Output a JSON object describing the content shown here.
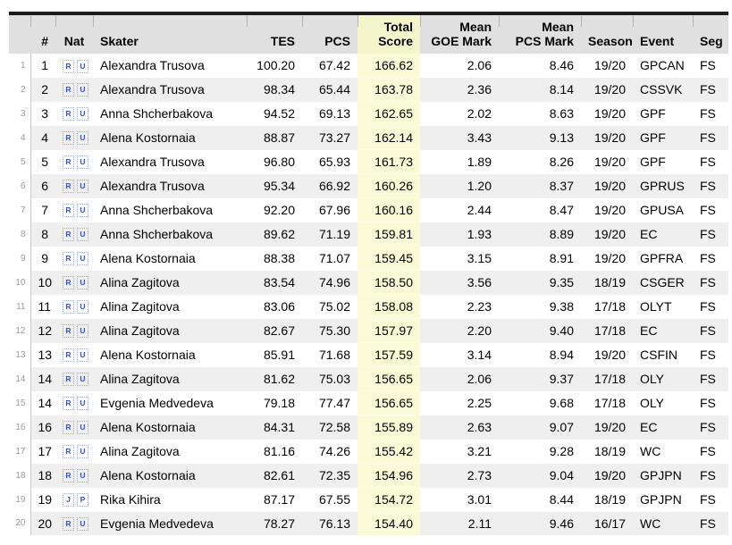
{
  "colors": {
    "top_border": "#1b1b1b",
    "header_bg": "#e0e0e0",
    "header_total_bg": "#f5f5cc",
    "row_alt_bg": "#efefef",
    "total_col_bg": "#fafad6",
    "gutter_text": "#9a9a9a",
    "gutter_border": "#c9c9c9",
    "flag_letter": "#3c52c4"
  },
  "table": {
    "gutter_header": "",
    "columns": [
      {
        "key": "rank",
        "label": "#",
        "align": "right"
      },
      {
        "key": "nat",
        "label": "Nat",
        "align": "center"
      },
      {
        "key": "skater",
        "label": "Skater",
        "align": "left"
      },
      {
        "key": "tes",
        "label": "TES",
        "align": "right"
      },
      {
        "key": "pcs",
        "label": "PCS",
        "align": "right"
      },
      {
        "key": "total",
        "label": "Total\nScore",
        "align": "right"
      },
      {
        "key": "goe",
        "label": "Mean\nGOE Mark",
        "align": "right"
      },
      {
        "key": "pcsmark",
        "label": "Mean\nPCS Mark",
        "align": "right"
      },
      {
        "key": "season",
        "label": "Season",
        "align": "right"
      },
      {
        "key": "event",
        "label": "Event",
        "align": "left"
      },
      {
        "key": "seg",
        "label": "Seg",
        "align": "left"
      }
    ],
    "rows": [
      {
        "num": "1",
        "rank": "1",
        "nat": "RU",
        "skater": "Alexandra Trusova",
        "tes": "100.20",
        "pcs": "67.42",
        "total": "166.62",
        "goe": "2.06",
        "pcsmark": "8.46",
        "season": "19/20",
        "event": "GPCAN",
        "seg": "FS"
      },
      {
        "num": "2",
        "rank": "2",
        "nat": "RU",
        "skater": "Alexandra Trusova",
        "tes": "98.34",
        "pcs": "65.44",
        "total": "163.78",
        "goe": "2.36",
        "pcsmark": "8.14",
        "season": "19/20",
        "event": "CSSVK",
        "seg": "FS"
      },
      {
        "num": "3",
        "rank": "3",
        "nat": "RU",
        "skater": "Anna Shcherbakova",
        "tes": "94.52",
        "pcs": "69.13",
        "total": "162.65",
        "goe": "2.02",
        "pcsmark": "8.63",
        "season": "19/20",
        "event": "GPF",
        "seg": "FS"
      },
      {
        "num": "4",
        "rank": "4",
        "nat": "RU",
        "skater": "Alena Kostornaia",
        "tes": "88.87",
        "pcs": "73.27",
        "total": "162.14",
        "goe": "3.43",
        "pcsmark": "9.13",
        "season": "19/20",
        "event": "GPF",
        "seg": "FS"
      },
      {
        "num": "5",
        "rank": "5",
        "nat": "RU",
        "skater": "Alexandra Trusova",
        "tes": "96.80",
        "pcs": "65.93",
        "total": "161.73",
        "goe": "1.89",
        "pcsmark": "8.26",
        "season": "19/20",
        "event": "GPF",
        "seg": "FS"
      },
      {
        "num": "6",
        "rank": "6",
        "nat": "RU",
        "skater": "Alexandra Trusova",
        "tes": "95.34",
        "pcs": "66.92",
        "total": "160.26",
        "goe": "1.20",
        "pcsmark": "8.37",
        "season": "19/20",
        "event": "GPRUS",
        "seg": "FS"
      },
      {
        "num": "7",
        "rank": "7",
        "nat": "RU",
        "skater": "Anna Shcherbakova",
        "tes": "92.20",
        "pcs": "67.96",
        "total": "160.16",
        "goe": "2.44",
        "pcsmark": "8.47",
        "season": "19/20",
        "event": "GPUSA",
        "seg": "FS"
      },
      {
        "num": "8",
        "rank": "8",
        "nat": "RU",
        "skater": "Anna Shcherbakova",
        "tes": "89.62",
        "pcs": "71.19",
        "total": "159.81",
        "goe": "1.93",
        "pcsmark": "8.89",
        "season": "19/20",
        "event": "EC",
        "seg": "FS"
      },
      {
        "num": "9",
        "rank": "9",
        "nat": "RU",
        "skater": "Alena Kostornaia",
        "tes": "88.38",
        "pcs": "71.07",
        "total": "159.45",
        "goe": "3.15",
        "pcsmark": "8.91",
        "season": "19/20",
        "event": "GPFRA",
        "seg": "FS"
      },
      {
        "num": "10",
        "rank": "10",
        "nat": "RU",
        "skater": "Alina Zagitova",
        "tes": "83.54",
        "pcs": "74.96",
        "total": "158.50",
        "goe": "3.56",
        "pcsmark": "9.35",
        "season": "18/19",
        "event": "CSGER",
        "seg": "FS"
      },
      {
        "num": "11",
        "rank": "11",
        "nat": "RU",
        "skater": "Alina Zagitova",
        "tes": "83.06",
        "pcs": "75.02",
        "total": "158.08",
        "goe": "2.23",
        "pcsmark": "9.38",
        "season": "17/18",
        "event": "OLYT",
        "seg": "FS"
      },
      {
        "num": "12",
        "rank": "12",
        "nat": "RU",
        "skater": "Alina Zagitova",
        "tes": "82.67",
        "pcs": "75.30",
        "total": "157.97",
        "goe": "2.20",
        "pcsmark": "9.40",
        "season": "17/18",
        "event": "EC",
        "seg": "FS"
      },
      {
        "num": "13",
        "rank": "13",
        "nat": "RU",
        "skater": "Alena Kostornaia",
        "tes": "85.91",
        "pcs": "71.68",
        "total": "157.59",
        "goe": "3.14",
        "pcsmark": "8.94",
        "season": "19/20",
        "event": "CSFIN",
        "seg": "FS"
      },
      {
        "num": "14",
        "rank": "14",
        "nat": "RU",
        "skater": "Alina Zagitova",
        "tes": "81.62",
        "pcs": "75.03",
        "total": "156.65",
        "goe": "2.06",
        "pcsmark": "9.37",
        "season": "17/18",
        "event": "OLY",
        "seg": "FS"
      },
      {
        "num": "15",
        "rank": "14",
        "nat": "RU",
        "skater": "Evgenia Medvedeva",
        "tes": "79.18",
        "pcs": "77.47",
        "total": "156.65",
        "goe": "2.25",
        "pcsmark": "9.68",
        "season": "17/18",
        "event": "OLY",
        "seg": "FS"
      },
      {
        "num": "16",
        "rank": "16",
        "nat": "RU",
        "skater": "Alena Kostornaia",
        "tes": "84.31",
        "pcs": "72.58",
        "total": "155.89",
        "goe": "2.63",
        "pcsmark": "9.07",
        "season": "19/20",
        "event": "EC",
        "seg": "FS"
      },
      {
        "num": "17",
        "rank": "17",
        "nat": "RU",
        "skater": "Alina Zagitova",
        "tes": "81.16",
        "pcs": "74.26",
        "total": "155.42",
        "goe": "3.21",
        "pcsmark": "9.28",
        "season": "18/19",
        "event": "WC",
        "seg": "FS"
      },
      {
        "num": "18",
        "rank": "18",
        "nat": "RU",
        "skater": "Alena Kostornaia",
        "tes": "82.61",
        "pcs": "72.35",
        "total": "154.96",
        "goe": "2.73",
        "pcsmark": "9.04",
        "season": "19/20",
        "event": "GPJPN",
        "seg": "FS"
      },
      {
        "num": "19",
        "rank": "19",
        "nat": "JP",
        "skater": "Rika Kihira",
        "tes": "87.17",
        "pcs": "67.55",
        "total": "154.72",
        "goe": "3.01",
        "pcsmark": "8.44",
        "season": "18/19",
        "event": "GPJPN",
        "seg": "FS"
      },
      {
        "num": "20",
        "rank": "20",
        "nat": "RU",
        "skater": "Evgenia Medvedeva",
        "tes": "78.27",
        "pcs": "76.13",
        "total": "154.40",
        "goe": "2.11",
        "pcsmark": "9.46",
        "season": "16/17",
        "event": "WC",
        "seg": "FS"
      }
    ]
  }
}
